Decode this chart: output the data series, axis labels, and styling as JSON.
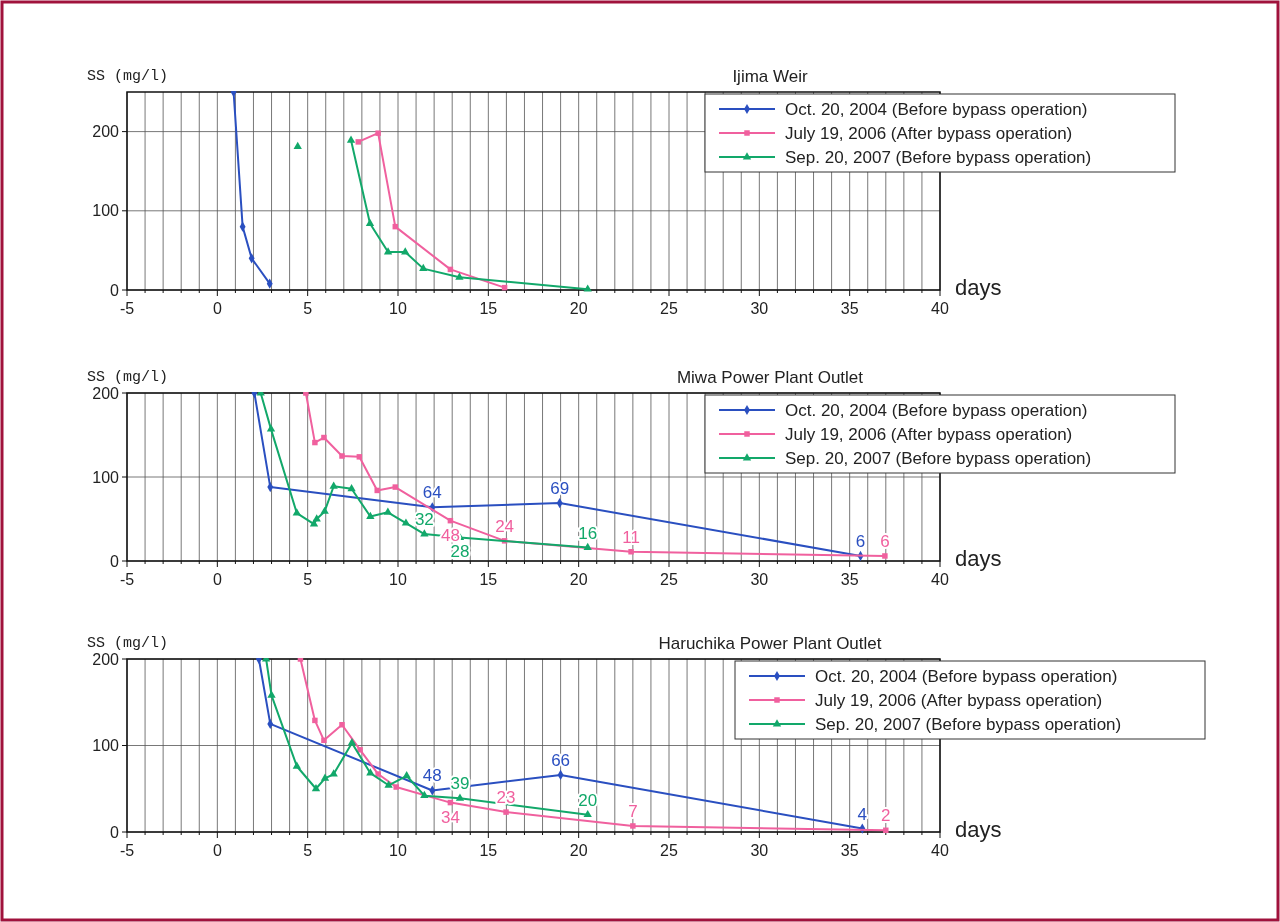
{
  "chart_data": [
    {
      "type": "line",
      "title": "Ijima Weir",
      "xlabel": "days",
      "ylabel": "SS (mg/l)",
      "xlim": [
        -5,
        40
      ],
      "ylim": [
        0,
        250
      ],
      "yticks": [
        0,
        100,
        200
      ],
      "grid": true,
      "legend": "top right",
      "xticks": [
        -5,
        {
          "value": -4,
          "label": null
        },
        {
          "value": -3,
          "label": null
        },
        {
          "value": -2,
          "label": null
        },
        {
          "value": -1,
          "label": null
        },
        0,
        {
          "value": 1,
          "label": null
        },
        {
          "value": 2,
          "label": null
        },
        {
          "value": 3,
          "label": null
        },
        {
          "value": 4,
          "label": null
        },
        5,
        {
          "value": 6,
          "label": null
        },
        {
          "value": 7,
          "label": null
        },
        {
          "value": 8,
          "label": null
        },
        {
          "value": 9,
          "label": null
        },
        10,
        {
          "value": 11,
          "label": null
        },
        {
          "value": 12,
          "label": null
        },
        {
          "value": 13,
          "label": null
        },
        {
          "value": 14,
          "label": null
        },
        15,
        {
          "value": 16,
          "label": null
        },
        {
          "value": 17,
          "label": null
        },
        {
          "value": 18,
          "label": null
        },
        {
          "value": 19,
          "label": null
        },
        20,
        {
          "value": 21,
          "label": null
        },
        {
          "value": 22,
          "label": null
        },
        {
          "value": 23,
          "label": null
        },
        {
          "value": 24,
          "label": null
        },
        25,
        {
          "value": 26,
          "label": null
        },
        {
          "value": 27,
          "label": null
        },
        {
          "value": 28,
          "label": null
        },
        {
          "value": 29,
          "label": null
        },
        30,
        {
          "value": 31,
          "label": null
        },
        {
          "value": 32,
          "label": null
        },
        {
          "value": 33,
          "label": null
        },
        {
          "value": 34,
          "label": null
        },
        35,
        {
          "value": 36,
          "label": null
        },
        {
          "value": 37,
          "label": null
        },
        {
          "value": 38,
          "label": null
        },
        {
          "value": 39,
          "label": null
        },
        40
      ],
      "series": [
        {
          "name": "Oct. 20, 2004 (Before bypass operation)",
          "color": "#2a4fc0",
          "marker": "diamond",
          "x": [
            0.9,
            1.4,
            1.9,
            2.9
          ],
          "values": [
            250,
            80,
            40,
            8
          ]
        },
        {
          "name": "July 19, 2006 (After bypass operation)",
          "color": "#f0609e",
          "marker": "square",
          "x": [
            7.8,
            8.9,
            9.85,
            12.9,
            15.9
          ],
          "values": [
            187,
            198,
            80,
            26,
            3
          ]
        },
        {
          "name": "Sep. 20, 2007 (Before bypass operation)",
          "color": "#12a86a",
          "marker": "triangle",
          "x": [
            4.45,
            5.9,
            7.4,
            8.45,
            9.45,
            10.4,
            11.4,
            13.4,
            20.5
          ],
          "values": [
            181,
            null,
            189,
            84,
            48,
            48,
            27,
            16,
            1
          ]
        }
      ]
    },
    {
      "type": "line",
      "title": "Miwa Power Plant Outlet",
      "xlabel": "days",
      "ylabel": "SS (mg/l)",
      "xlim": [
        -5,
        40
      ],
      "ylim": [
        0,
        200
      ],
      "yticks": [
        0,
        100,
        200
      ],
      "grid": true,
      "legend": "top right",
      "xticks": [
        -5,
        {
          "value": -4,
          "label": null
        },
        {
          "value": -3,
          "label": null
        },
        {
          "value": -2,
          "label": null
        },
        {
          "value": -1,
          "label": null
        },
        0,
        {
          "value": 1,
          "label": null
        },
        {
          "value": 2,
          "label": null
        },
        {
          "value": 3,
          "label": null
        },
        {
          "value": 4,
          "label": null
        },
        5,
        {
          "value": 6,
          "label": null
        },
        {
          "value": 7,
          "label": null
        },
        {
          "value": 8,
          "label": null
        },
        {
          "value": 9,
          "label": null
        },
        10,
        {
          "value": 11,
          "label": null
        },
        {
          "value": 12,
          "label": null
        },
        {
          "value": 13,
          "label": null
        },
        {
          "value": 14,
          "label": null
        },
        15,
        {
          "value": 16,
          "label": null
        },
        {
          "value": 17,
          "label": null
        },
        {
          "value": 18,
          "label": null
        },
        {
          "value": 19,
          "label": null
        },
        20,
        {
          "value": 21,
          "label": null
        },
        {
          "value": 22,
          "label": null
        },
        {
          "value": 23,
          "label": null
        },
        {
          "value": 24,
          "label": null
        },
        25,
        {
          "value": 26,
          "label": null
        },
        {
          "value": 27,
          "label": null
        },
        {
          "value": 28,
          "label": null
        },
        {
          "value": 29,
          "label": null
        },
        30,
        {
          "value": 31,
          "label": null
        },
        {
          "value": 32,
          "label": null
        },
        {
          "value": 33,
          "label": null
        },
        {
          "value": 34,
          "label": null
        },
        35,
        {
          "value": 36,
          "label": null
        },
        {
          "value": 37,
          "label": null
        },
        {
          "value": 38,
          "label": null
        },
        {
          "value": 39,
          "label": null
        },
        40
      ],
      "series": [
        {
          "name": "Oct. 20, 2004 (Before bypass operation)",
          "color": "#2a4fc0",
          "marker": "diamond",
          "x": [
            2.05,
            2.93,
            11.9,
            18.95,
            35.6
          ],
          "values": [
            200,
            88,
            64,
            69,
            6
          ],
          "value_labels": [
            null,
            null,
            "64",
            "69",
            "6"
          ]
        },
        {
          "name": "July 19, 2006 (After bypass operation)",
          "color": "#f0609e",
          "marker": "square",
          "x": [
            4.9,
            5.4,
            5.9,
            6.9,
            7.86,
            8.85,
            9.85,
            12.9,
            15.9,
            22.9,
            36.95
          ],
          "values": [
            200,
            141,
            147,
            125,
            124,
            84,
            88,
            48,
            24,
            11,
            6
          ],
          "value_labels": [
            null,
            null,
            null,
            null,
            null,
            null,
            null,
            "48",
            "24",
            "11",
            "6"
          ]
        },
        {
          "name": "Sep. 20, 2007 (Before bypass operation)",
          "color": "#12a86a",
          "marker": "triangle",
          "x": [
            2.4,
            2.97,
            4.4,
            5.35,
            5.5,
            5.94,
            6.44,
            7.43,
            8.47,
            9.44,
            10.44,
            11.46,
            13.43,
            20.5
          ],
          "values": [
            200,
            157,
            57,
            44,
            50,
            59,
            89,
            86,
            53,
            58,
            45,
            32,
            28,
            16
          ],
          "value_labels": [
            null,
            null,
            null,
            null,
            null,
            null,
            null,
            null,
            null,
            null,
            null,
            "32",
            "28",
            "16"
          ]
        }
      ]
    },
    {
      "type": "line",
      "title": "Haruchika Power Plant Outlet",
      "xlabel": "days",
      "ylabel": "SS (mg/l)",
      "xlim": [
        -5,
        40
      ],
      "ylim": [
        0,
        200
      ],
      "yticks": [
        0,
        100,
        200
      ],
      "grid": true,
      "legend": "top right",
      "xticks": [
        -5,
        {
          "value": -4,
          "label": null
        },
        {
          "value": -3,
          "label": null
        },
        {
          "value": -2,
          "label": null
        },
        {
          "value": -1,
          "label": null
        },
        0,
        {
          "value": 1,
          "label": null
        },
        {
          "value": 2,
          "label": null
        },
        {
          "value": 3,
          "label": null
        },
        {
          "value": 4,
          "label": null
        },
        5,
        {
          "value": 6,
          "label": null
        },
        {
          "value": 7,
          "label": null
        },
        {
          "value": 8,
          "label": null
        },
        {
          "value": 9,
          "label": null
        },
        10,
        {
          "value": 11,
          "label": null
        },
        {
          "value": 12,
          "label": null
        },
        {
          "value": 13,
          "label": null
        },
        {
          "value": 14,
          "label": null
        },
        15,
        {
          "value": 16,
          "label": null
        },
        {
          "value": 17,
          "label": null
        },
        {
          "value": 18,
          "label": null
        },
        {
          "value": 19,
          "label": null
        },
        20,
        {
          "value": 21,
          "label": null
        },
        {
          "value": 22,
          "label": null
        },
        {
          "value": 23,
          "label": null
        },
        {
          "value": 24,
          "label": null
        },
        25,
        {
          "value": 26,
          "label": null
        },
        {
          "value": 27,
          "label": null
        },
        {
          "value": 28,
          "label": null
        },
        {
          "value": 29,
          "label": null
        },
        30,
        {
          "value": 31,
          "label": null
        },
        {
          "value": 32,
          "label": null
        },
        {
          "value": 33,
          "label": null
        },
        {
          "value": 34,
          "label": null
        },
        35,
        {
          "value": 36,
          "label": null
        },
        {
          "value": 37,
          "label": null
        },
        {
          "value": 38,
          "label": null
        },
        {
          "value": 39,
          "label": null
        },
        40
      ],
      "series": [
        {
          "name": "Oct. 20, 2004 (Before bypass operation)",
          "color": "#2a4fc0",
          "marker": "diamond",
          "x": [
            2.3,
            2.93,
            11.9,
            19,
            35.7
          ],
          "values": [
            200,
            125,
            48,
            66,
            4
          ],
          "value_labels": [
            null,
            null,
            "48",
            "66",
            "4"
          ]
        },
        {
          "name": "July 19, 2006 (After bypass operation)",
          "color": "#f0609e",
          "marker": "square",
          "x": [
            4.6,
            5.4,
            5.9,
            6.9,
            7.9,
            8.9,
            9.9,
            12.9,
            15.98,
            23,
            37
          ],
          "values": [
            200,
            129,
            106,
            124,
            95,
            67,
            52,
            34,
            23,
            7,
            2
          ],
          "value_labels": [
            null,
            null,
            null,
            null,
            null,
            null,
            null,
            "34",
            "23",
            "7",
            "2"
          ]
        },
        {
          "name": "Sep. 20, 2007 (Before bypass operation)",
          "color": "#12a86a",
          "marker": "triangle",
          "x": [
            2.7,
            3.0,
            4.4,
            5.46,
            5.96,
            6.44,
            7.45,
            8.47,
            9.48,
            10.48,
            11.46,
            13.43,
            20.5
          ],
          "values": [
            200,
            158,
            76,
            50,
            62,
            67,
            103,
            68,
            54,
            65,
            42,
            39,
            20
          ],
          "value_labels": [
            null,
            null,
            null,
            null,
            null,
            null,
            null,
            null,
            null,
            null,
            null,
            "39",
            "20"
          ]
        }
      ]
    }
  ]
}
